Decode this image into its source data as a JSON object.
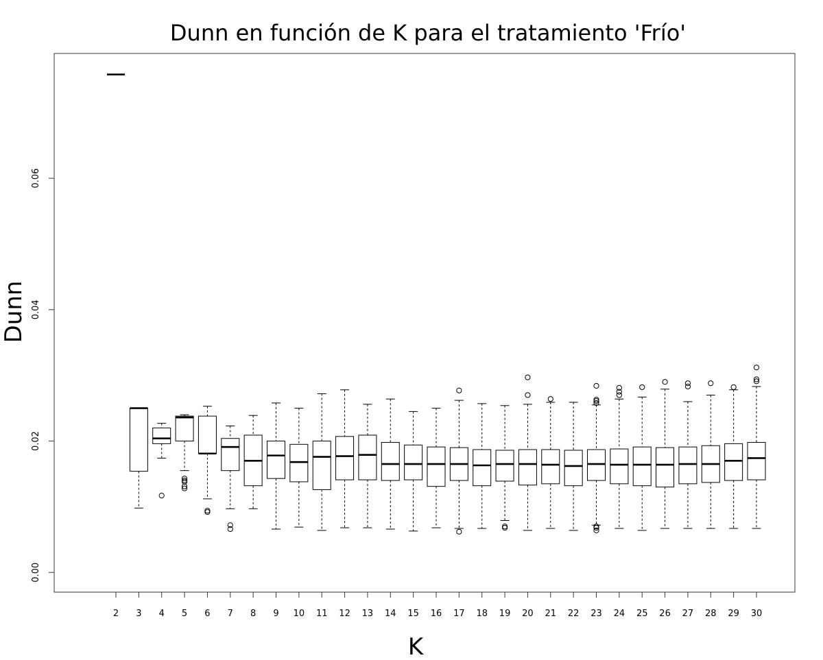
{
  "chart_data": {
    "type": "boxplot",
    "title": "Dunn en función de K para el tratamiento 'Frío'",
    "xlabel": "K",
    "ylabel": "Dunn",
    "ylim": [
      -0.003,
      0.079
    ],
    "yticks": [
      "0.00",
      "0.02",
      "0.04",
      "0.06"
    ],
    "grid": false,
    "boxes": [
      {
        "k": "2",
        "min": 0.0758,
        "q1": 0.0758,
        "median": 0.0758,
        "q3": 0.0758,
        "max": 0.0758,
        "outliers": []
      },
      {
        "k": "3",
        "min": 0.0098,
        "q1": 0.0154,
        "median": 0.025,
        "q3": 0.025,
        "max": 0.025,
        "outliers": []
      },
      {
        "k": "4",
        "min": 0.0174,
        "q1": 0.0196,
        "median": 0.0204,
        "q3": 0.022,
        "max": 0.0227,
        "outliers": [
          0.0117
        ]
      },
      {
        "k": "5",
        "min": 0.0155,
        "q1": 0.02,
        "median": 0.0236,
        "q3": 0.0238,
        "max": 0.024,
        "outliers": [
          0.0143,
          0.014,
          0.0138,
          0.0131,
          0.0128
        ]
      },
      {
        "k": "6",
        "min": 0.0112,
        "q1": 0.0181,
        "median": 0.0181,
        "q3": 0.0238,
        "max": 0.0253,
        "outliers": [
          0.0094,
          0.0092
        ]
      },
      {
        "k": "7",
        "min": 0.0097,
        "q1": 0.0155,
        "median": 0.0191,
        "q3": 0.0204,
        "max": 0.0223,
        "outliers": [
          0.0072,
          0.0066
        ]
      },
      {
        "k": "8",
        "min": 0.0097,
        "q1": 0.0132,
        "median": 0.017,
        "q3": 0.0209,
        "max": 0.0239,
        "outliers": []
      },
      {
        "k": "9",
        "min": 0.0066,
        "q1": 0.0143,
        "median": 0.0178,
        "q3": 0.02,
        "max": 0.0258,
        "outliers": []
      },
      {
        "k": "10",
        "min": 0.0069,
        "q1": 0.0138,
        "median": 0.0168,
        "q3": 0.0195,
        "max": 0.025,
        "outliers": []
      },
      {
        "k": "11",
        "min": 0.0064,
        "q1": 0.0126,
        "median": 0.0176,
        "q3": 0.02,
        "max": 0.0272,
        "outliers": []
      },
      {
        "k": "12",
        "min": 0.0068,
        "q1": 0.0141,
        "median": 0.0177,
        "q3": 0.0207,
        "max": 0.0278,
        "outliers": []
      },
      {
        "k": "13",
        "min": 0.0068,
        "q1": 0.0141,
        "median": 0.0179,
        "q3": 0.0209,
        "max": 0.0256,
        "outliers": []
      },
      {
        "k": "14",
        "min": 0.0066,
        "q1": 0.014,
        "median": 0.0165,
        "q3": 0.0198,
        "max": 0.0264,
        "outliers": []
      },
      {
        "k": "15",
        "min": 0.0063,
        "q1": 0.0141,
        "median": 0.0165,
        "q3": 0.0194,
        "max": 0.0245,
        "outliers": []
      },
      {
        "k": "16",
        "min": 0.0068,
        "q1": 0.0131,
        "median": 0.0165,
        "q3": 0.0191,
        "max": 0.025,
        "outliers": []
      },
      {
        "k": "17",
        "min": 0.0067,
        "q1": 0.014,
        "median": 0.0165,
        "q3": 0.019,
        "max": 0.0262,
        "outliers": [
          0.0277,
          0.0062
        ]
      },
      {
        "k": "18",
        "min": 0.0067,
        "q1": 0.0132,
        "median": 0.0163,
        "q3": 0.0187,
        "max": 0.0257,
        "outliers": []
      },
      {
        "k": "19",
        "min": 0.0079,
        "q1": 0.0139,
        "median": 0.0165,
        "q3": 0.0186,
        "max": 0.0254,
        "outliers": [
          0.007,
          0.0068
        ]
      },
      {
        "k": "20",
        "min": 0.0064,
        "q1": 0.0133,
        "median": 0.0165,
        "q3": 0.0187,
        "max": 0.0256,
        "outliers": [
          0.0297,
          0.027
        ]
      },
      {
        "k": "21",
        "min": 0.0067,
        "q1": 0.0135,
        "median": 0.0164,
        "q3": 0.0187,
        "max": 0.0259,
        "outliers": [
          0.0264
        ]
      },
      {
        "k": "22",
        "min": 0.0064,
        "q1": 0.0132,
        "median": 0.0162,
        "q3": 0.0186,
        "max": 0.0259,
        "outliers": []
      },
      {
        "k": "23",
        "min": 0.0072,
        "q1": 0.014,
        "median": 0.0165,
        "q3": 0.0187,
        "max": 0.0255,
        "outliers": [
          0.0284,
          0.0263,
          0.0261,
          0.0258,
          0.007,
          0.0068,
          0.0064
        ]
      },
      {
        "k": "24",
        "min": 0.0067,
        "q1": 0.0135,
        "median": 0.0164,
        "q3": 0.0188,
        "max": 0.0264,
        "outliers": [
          0.0281,
          0.0275,
          0.027
        ]
      },
      {
        "k": "25",
        "min": 0.0064,
        "q1": 0.0132,
        "median": 0.0164,
        "q3": 0.0191,
        "max": 0.0267,
        "outliers": [
          0.0282
        ]
      },
      {
        "k": "26",
        "min": 0.0067,
        "q1": 0.013,
        "median": 0.0164,
        "q3": 0.019,
        "max": 0.0279,
        "outliers": [
          0.029
        ]
      },
      {
        "k": "27",
        "min": 0.0067,
        "q1": 0.0135,
        "median": 0.0165,
        "q3": 0.0191,
        "max": 0.026,
        "outliers": [
          0.0288,
          0.0283
        ]
      },
      {
        "k": "28",
        "min": 0.0067,
        "q1": 0.0137,
        "median": 0.0165,
        "q3": 0.0193,
        "max": 0.027,
        "outliers": [
          0.0288
        ]
      },
      {
        "k": "29",
        "min": 0.0067,
        "q1": 0.014,
        "median": 0.017,
        "q3": 0.0196,
        "max": 0.0278,
        "outliers": [
          0.0282
        ]
      },
      {
        "k": "30",
        "min": 0.0067,
        "q1": 0.0141,
        "median": 0.0174,
        "q3": 0.0198,
        "max": 0.0283,
        "outliers": [
          0.0312,
          0.0294,
          0.0291
        ]
      }
    ]
  }
}
